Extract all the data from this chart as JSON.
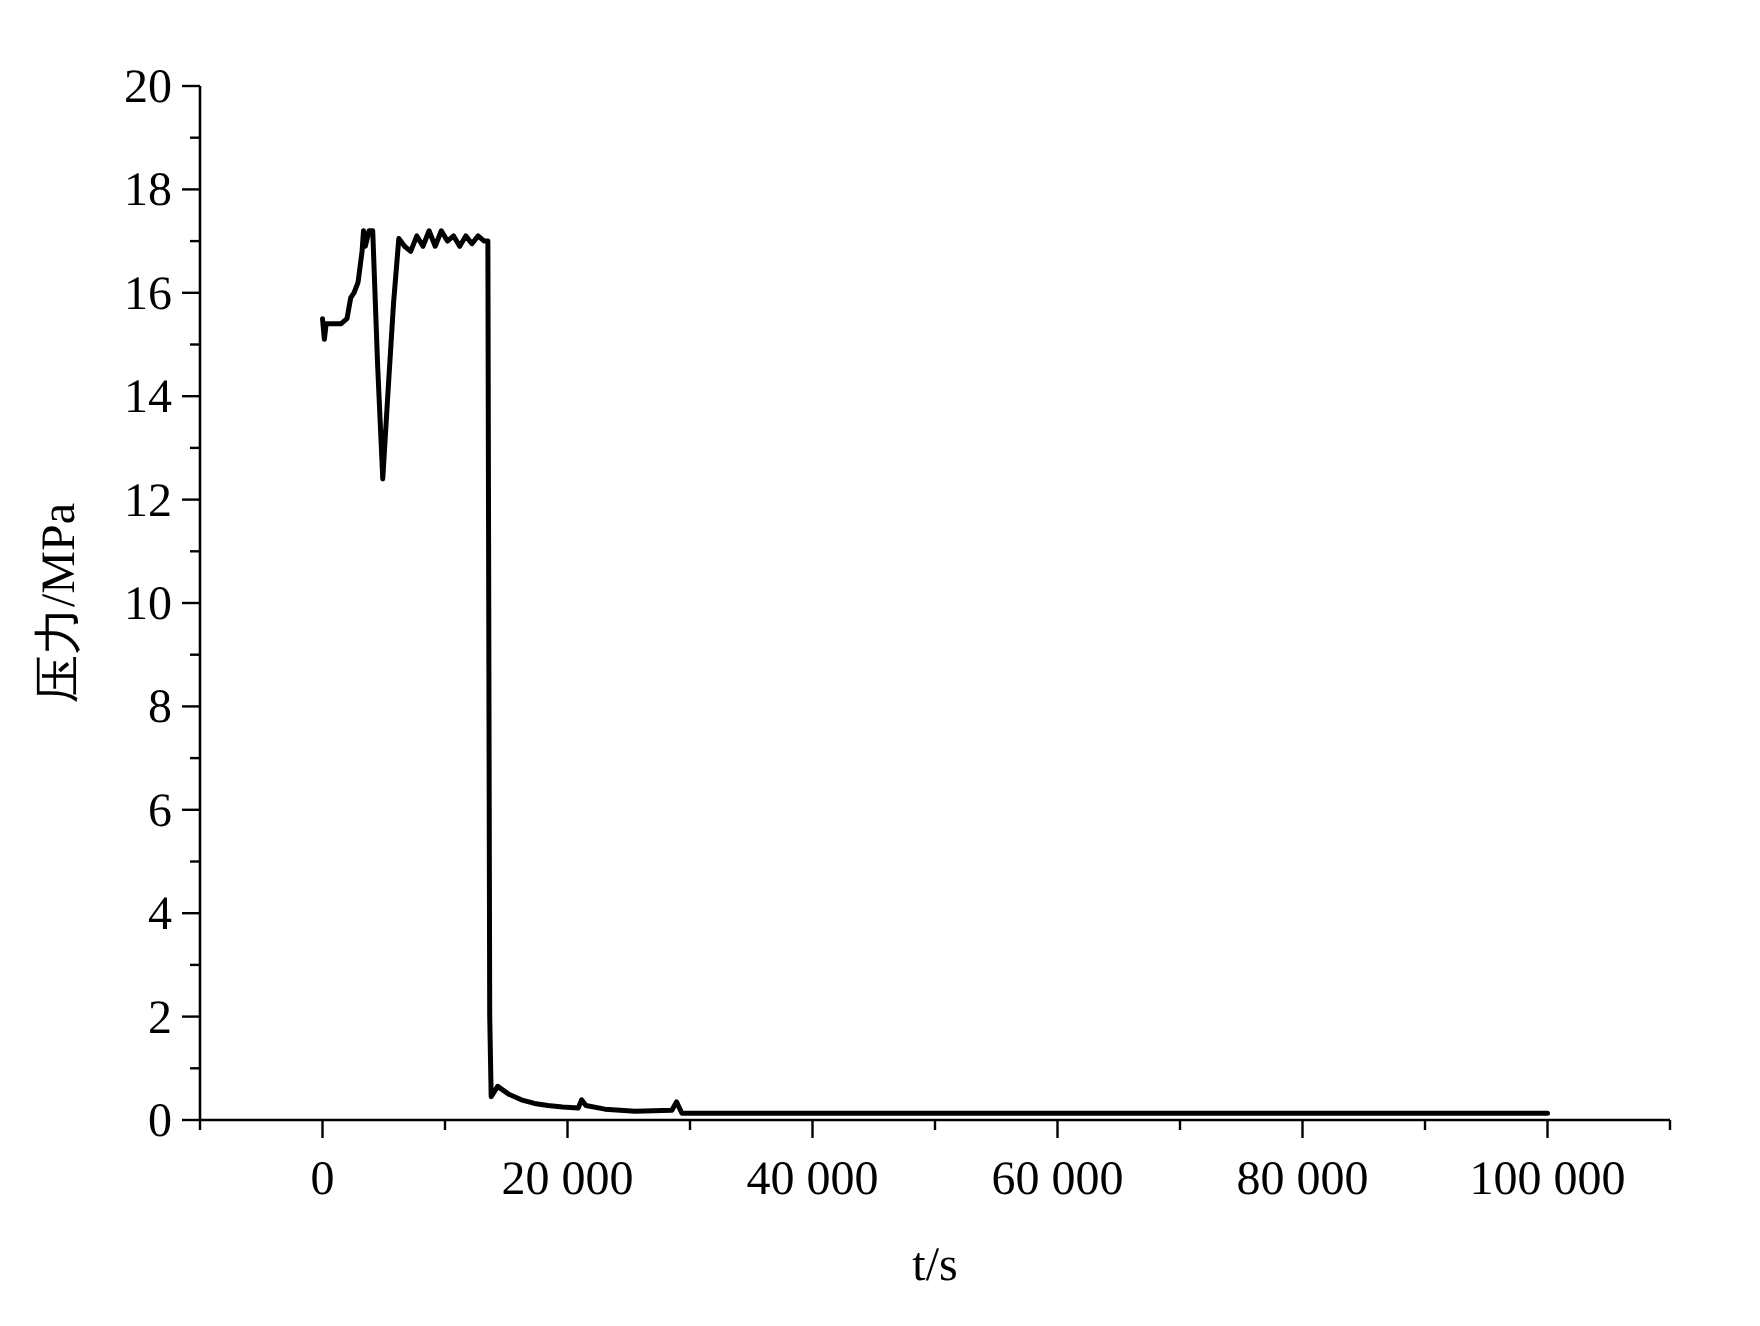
{
  "chart_data": {
    "type": "line",
    "xlabel": "t/s",
    "ylabel": "压力/MPa",
    "color": "#000000",
    "x": [
      0,
      150,
      300,
      600,
      1000,
      1500,
      2000,
      2300,
      2570,
      2900,
      3230,
      3350,
      3500,
      3800,
      4100,
      4500,
      4920,
      5300,
      5800,
      6230,
      6700,
      7200,
      7700,
      8200,
      8700,
      9200,
      9700,
      10200,
      10700,
      11200,
      11700,
      12200,
      12700,
      13200,
      13500,
      13650,
      13770,
      14300,
      15200,
      16230,
      17300,
      18400,
      19600,
      20870,
      21150,
      21500,
      23060,
      25520,
      28520,
      28900,
      29340,
      35000,
      50000,
      70000,
      100000
    ],
    "values": [
      15.5,
      15.1,
      15.4,
      15.4,
      15.4,
      15.4,
      15.5,
      15.9,
      16.0,
      16.2,
      16.8,
      17.2,
      16.9,
      17.2,
      17.2,
      14.6,
      12.4,
      13.9,
      15.8,
      17.05,
      16.9,
      16.8,
      17.1,
      16.9,
      17.2,
      16.9,
      17.2,
      17.0,
      17.1,
      16.9,
      17.1,
      16.95,
      17.1,
      17.0,
      17.0,
      2.0,
      0.45,
      0.65,
      0.5,
      0.39,
      0.32,
      0.28,
      0.25,
      0.23,
      0.39,
      0.28,
      0.21,
      0.17,
      0.19,
      0.35,
      0.13,
      0.13,
      0.13,
      0.13,
      0.13
    ],
    "xlim": [
      -10000,
      110000
    ],
    "ylim": [
      0,
      20
    ],
    "xticks": [
      {
        "value": -10000,
        "label": null
      },
      0,
      {
        "value": 10000,
        "label": null
      },
      {
        "value": 20000,
        "label": "20 000"
      },
      {
        "value": 30000,
        "label": null
      },
      {
        "value": 40000,
        "label": "40 000"
      },
      {
        "value": 50000,
        "label": null
      },
      {
        "value": 60000,
        "label": "60 000"
      },
      {
        "value": 70000,
        "label": null
      },
      {
        "value": 80000,
        "label": "80 000"
      },
      {
        "value": 90000,
        "label": null
      },
      {
        "value": 100000,
        "label": "100 000"
      },
      {
        "value": 110000,
        "label": null
      }
    ],
    "yticks": [
      0,
      {
        "value": 1,
        "label": null
      },
      2,
      {
        "value": 3,
        "label": null
      },
      4,
      {
        "value": 5,
        "label": null
      },
      6,
      {
        "value": 7,
        "label": null
      },
      8,
      {
        "value": 9,
        "label": null
      },
      10,
      {
        "value": 11,
        "label": null
      },
      12,
      {
        "value": 13,
        "label": null
      },
      14,
      {
        "value": 15,
        "label": null
      },
      16,
      {
        "value": 17,
        "label": null
      },
      18,
      {
        "value": 19,
        "label": null
      },
      20
    ]
  }
}
